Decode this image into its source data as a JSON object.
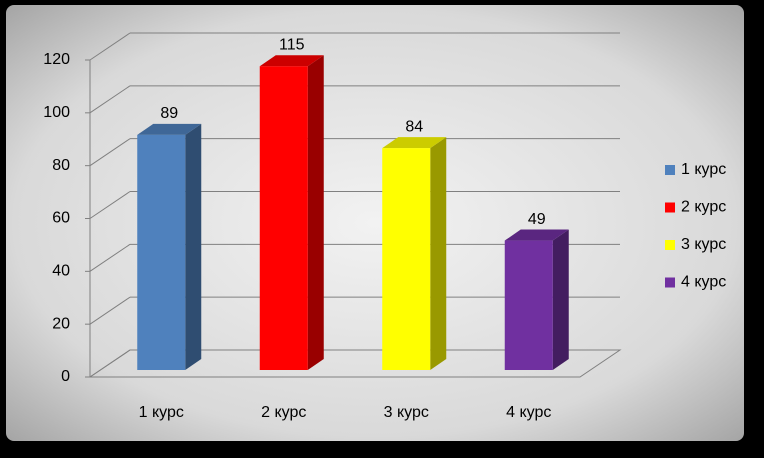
{
  "chart_data": {
    "type": "bar3d",
    "categories": [
      "1 курс",
      "2 курс",
      "3 курс",
      "4 курс"
    ],
    "values": [
      89,
      115,
      84,
      49
    ],
    "colors": [
      "#4f81bd",
      "#ff0000",
      "#ffff00",
      "#7030a0"
    ],
    "ylim": [
      0,
      120
    ],
    "yticks": [
      0,
      20,
      40,
      60,
      80,
      100,
      120
    ],
    "grid": true,
    "legend": "right"
  }
}
